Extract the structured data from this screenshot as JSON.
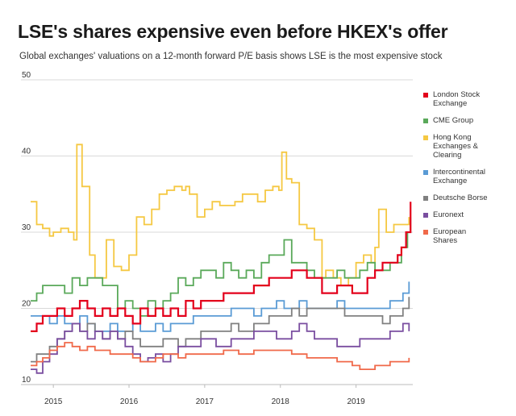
{
  "title": "LSE's shares expensive even before HKEX's offer",
  "subtitle": "Global exchanges' valuations on a 12-month forward P/E basis shows LSE is the most expensive stock",
  "colors": {
    "lse": "#e3001b",
    "cme": "#5aa95a",
    "hkex": "#f5c842",
    "ice": "#5a9bd5",
    "deutsche": "#808080",
    "euronext": "#7a4ea0",
    "european": "#f0694a",
    "grid": "#d9d9d9",
    "axis_text": "#333333"
  },
  "chart_data": {
    "type": "line",
    "title": "LSE's shares expensive even before HKEX's offer",
    "subtitle": "Global exchanges' valuations on a 12-month forward P/E basis shows LSE is the most expensive stock",
    "xlabel": "",
    "ylabel": "",
    "xlim": [
      2014.7,
      2019.75
    ],
    "ylim": [
      10,
      50
    ],
    "yticks": [
      10,
      20,
      30,
      40,
      50
    ],
    "xticks": [
      {
        "value": 2015.0,
        "label": "2015"
      },
      {
        "value": 2016.0,
        "label": "2016"
      },
      {
        "value": 2017.0,
        "label": "2017"
      },
      {
        "value": 2018.0,
        "label": "2018"
      },
      {
        "value": 2019.0,
        "label": "2019"
      }
    ],
    "grid": true,
    "legend_position": "right",
    "step": true,
    "series": [
      {
        "key": "hkex",
        "name": "Hong Kong Exchanges & Clearing",
        "x": [
          2014.7,
          2014.78,
          2014.86,
          2014.95,
          2015.0,
          2015.1,
          2015.2,
          2015.27,
          2015.31,
          2015.38,
          2015.48,
          2015.55,
          2015.6,
          2015.7,
          2015.8,
          2015.9,
          2016.0,
          2016.1,
          2016.2,
          2016.3,
          2016.4,
          2016.5,
          2016.6,
          2016.7,
          2016.75,
          2016.8,
          2016.9,
          2017.0,
          2017.1,
          2017.2,
          2017.3,
          2017.4,
          2017.5,
          2017.6,
          2017.7,
          2017.8,
          2017.9,
          2017.98,
          2018.02,
          2018.08,
          2018.15,
          2018.25,
          2018.35,
          2018.45,
          2018.55,
          2018.6,
          2018.7,
          2018.8,
          2018.9,
          2019.0,
          2019.1,
          2019.2,
          2019.25,
          2019.3,
          2019.4,
          2019.5,
          2019.6,
          2019.7
        ],
        "values": [
          34,
          31,
          30.5,
          29.5,
          30,
          30.5,
          30,
          29,
          41.5,
          36,
          27,
          24,
          24,
          29,
          25.5,
          25,
          27,
          32,
          31,
          33,
          35,
          35.5,
          36,
          35.5,
          36,
          35,
          32,
          33,
          34,
          33.5,
          33.5,
          34,
          35,
          35,
          34,
          35.5,
          36,
          35.5,
          40.5,
          37,
          36.5,
          31,
          30.5,
          29,
          24,
          25,
          24,
          23,
          24,
          26,
          27,
          26,
          28,
          33,
          30,
          31,
          31,
          32
        ]
      },
      {
        "key": "cme",
        "name": "CME Group",
        "x": [
          2014.7,
          2014.78,
          2014.86,
          2014.95,
          2015.05,
          2015.15,
          2015.25,
          2015.35,
          2015.45,
          2015.55,
          2015.65,
          2015.75,
          2015.85,
          2015.95,
          2016.05,
          2016.15,
          2016.25,
          2016.35,
          2016.45,
          2016.55,
          2016.65,
          2016.75,
          2016.85,
          2016.95,
          2017.05,
          2017.15,
          2017.25,
          2017.35,
          2017.45,
          2017.55,
          2017.65,
          2017.75,
          2017.85,
          2017.95,
          2018.05,
          2018.15,
          2018.25,
          2018.35,
          2018.45,
          2018.55,
          2018.65,
          2018.75,
          2018.85,
          2018.95,
          2019.05,
          2019.15,
          2019.25,
          2019.35,
          2019.45,
          2019.55,
          2019.6,
          2019.68,
          2019.72
        ],
        "values": [
          21,
          22,
          23,
          23,
          23,
          22,
          24,
          23,
          24,
          24,
          23,
          23,
          20,
          21,
          20,
          19,
          21,
          20,
          21,
          22,
          24,
          23,
          24,
          25,
          25,
          24,
          26,
          25,
          24,
          25,
          24,
          26,
          27,
          27,
          29,
          26,
          26,
          25,
          24,
          24,
          24,
          25,
          24,
          24,
          25,
          26,
          25,
          25,
          26,
          26,
          28,
          30,
          32
        ]
      },
      {
        "key": "lse",
        "name": "London Stock Exchange",
        "x": [
          2014.7,
          2014.78,
          2014.86,
          2014.95,
          2015.05,
          2015.15,
          2015.25,
          2015.35,
          2015.45,
          2015.55,
          2015.65,
          2015.75,
          2015.85,
          2015.95,
          2016.05,
          2016.15,
          2016.25,
          2016.35,
          2016.45,
          2016.55,
          2016.65,
          2016.75,
          2016.85,
          2016.95,
          2017.05,
          2017.15,
          2017.25,
          2017.35,
          2017.45,
          2017.55,
          2017.65,
          2017.75,
          2017.85,
          2017.95,
          2018.05,
          2018.15,
          2018.25,
          2018.35,
          2018.45,
          2018.55,
          2018.65,
          2018.75,
          2018.85,
          2018.95,
          2019.05,
          2019.15,
          2019.25,
          2019.35,
          2019.45,
          2019.55,
          2019.6,
          2019.66,
          2019.72
        ],
        "values": [
          17,
          18,
          19,
          19,
          20,
          19,
          20,
          21,
          20,
          19,
          20,
          19,
          20,
          19,
          18,
          20,
          19,
          20,
          19,
          20,
          19,
          21,
          20,
          21,
          21,
          21,
          22,
          22,
          22,
          22,
          23,
          23,
          24,
          24,
          24,
          25,
          25,
          24,
          24,
          22,
          22,
          23,
          23,
          22,
          22,
          24,
          25,
          26,
          26,
          27,
          28,
          30,
          34
        ]
      },
      {
        "key": "ice",
        "name": "Intercontinental Exchange",
        "x": [
          2014.7,
          2014.78,
          2014.86,
          2014.95,
          2015.05,
          2015.15,
          2015.25,
          2015.35,
          2015.45,
          2015.55,
          2015.65,
          2015.75,
          2015.85,
          2015.95,
          2016.05,
          2016.15,
          2016.25,
          2016.35,
          2016.45,
          2016.55,
          2016.65,
          2016.75,
          2016.85,
          2016.95,
          2017.05,
          2017.15,
          2017.25,
          2017.35,
          2017.45,
          2017.55,
          2017.65,
          2017.75,
          2017.85,
          2017.95,
          2018.05,
          2018.15,
          2018.25,
          2018.35,
          2018.45,
          2018.55,
          2018.65,
          2018.75,
          2018.85,
          2018.95,
          2019.05,
          2019.15,
          2019.25,
          2019.35,
          2019.45,
          2019.55,
          2019.62,
          2019.7
        ],
        "values": [
          19,
          19,
          19,
          18,
          19,
          18,
          18,
          19,
          18,
          17,
          17,
          18,
          17,
          17,
          18,
          17,
          17,
          18,
          17,
          18,
          18,
          18,
          19,
          19,
          19,
          19,
          19,
          20,
          20,
          20,
          19,
          20,
          20,
          21,
          20,
          20,
          21,
          20,
          20,
          20,
          20,
          21,
          20,
          20,
          20,
          20,
          20,
          20,
          21,
          21,
          22,
          23.5
        ]
      },
      {
        "key": "deutsche",
        "name": "Deutsche Borse",
        "x": [
          2014.7,
          2014.78,
          2014.86,
          2014.95,
          2015.05,
          2015.15,
          2015.25,
          2015.35,
          2015.45,
          2015.55,
          2015.65,
          2015.75,
          2015.85,
          2015.95,
          2016.05,
          2016.15,
          2016.25,
          2016.35,
          2016.45,
          2016.55,
          2016.65,
          2016.75,
          2016.85,
          2016.95,
          2017.05,
          2017.15,
          2017.25,
          2017.35,
          2017.45,
          2017.55,
          2017.65,
          2017.75,
          2017.85,
          2017.95,
          2018.05,
          2018.15,
          2018.25,
          2018.35,
          2018.45,
          2018.55,
          2018.65,
          2018.75,
          2018.85,
          2018.95,
          2019.05,
          2019.15,
          2019.25,
          2019.35,
          2019.45,
          2019.55,
          2019.62,
          2019.7
        ],
        "values": [
          13,
          14,
          14,
          15,
          16,
          17,
          18,
          17,
          18,
          17,
          16,
          17,
          16,
          17,
          16,
          15,
          15,
          15,
          16,
          16,
          15,
          16,
          16,
          17,
          17,
          17,
          17,
          18,
          17,
          17,
          18,
          18,
          19,
          19,
          19,
          20,
          19,
          20,
          20,
          20,
          20,
          20,
          19,
          19,
          19,
          19,
          19,
          18,
          19,
          19,
          20,
          21.5
        ]
      },
      {
        "key": "euronext",
        "name": "Euronext",
        "x": [
          2014.7,
          2014.78,
          2014.86,
          2014.95,
          2015.05,
          2015.15,
          2015.25,
          2015.35,
          2015.45,
          2015.55,
          2015.65,
          2015.75,
          2015.85,
          2015.95,
          2016.05,
          2016.15,
          2016.25,
          2016.35,
          2016.45,
          2016.55,
          2016.65,
          2016.75,
          2016.85,
          2016.95,
          2017.05,
          2017.15,
          2017.25,
          2017.35,
          2017.45,
          2017.55,
          2017.65,
          2017.75,
          2017.85,
          2017.95,
          2018.05,
          2018.15,
          2018.25,
          2018.35,
          2018.45,
          2018.55,
          2018.65,
          2018.75,
          2018.85,
          2018.95,
          2019.05,
          2019.15,
          2019.25,
          2019.35,
          2019.45,
          2019.55,
          2019.62,
          2019.7
        ],
        "values": [
          12,
          11.5,
          13,
          14,
          16,
          17,
          18,
          17,
          16,
          17,
          16,
          17,
          16,
          15,
          14,
          13,
          13.5,
          14,
          13,
          14,
          15,
          15,
          15,
          16,
          16,
          15,
          15,
          16,
          16,
          16,
          17,
          17,
          17,
          16,
          16,
          17,
          18,
          17,
          16,
          16,
          16,
          15,
          15,
          15,
          16,
          16,
          16,
          16,
          17,
          17,
          18,
          17
        ]
      },
      {
        "key": "european",
        "name": "European Shares",
        "x": [
          2014.7,
          2014.78,
          2014.86,
          2014.95,
          2015.05,
          2015.15,
          2015.25,
          2015.35,
          2015.45,
          2015.55,
          2015.65,
          2015.75,
          2015.85,
          2015.95,
          2016.05,
          2016.15,
          2016.25,
          2016.35,
          2016.45,
          2016.55,
          2016.65,
          2016.75,
          2016.85,
          2016.95,
          2017.05,
          2017.15,
          2017.25,
          2017.35,
          2017.45,
          2017.55,
          2017.65,
          2017.75,
          2017.85,
          2017.95,
          2018.05,
          2018.15,
          2018.25,
          2018.35,
          2018.45,
          2018.55,
          2018.65,
          2018.75,
          2018.85,
          2018.95,
          2019.05,
          2019.15,
          2019.25,
          2019.35,
          2019.45,
          2019.55,
          2019.62,
          2019.7
        ],
        "values": [
          12.5,
          13,
          13.5,
          14.5,
          15,
          15.5,
          15,
          14.5,
          15,
          14.5,
          14.5,
          14,
          14,
          14,
          13.5,
          13,
          13,
          13.5,
          14,
          14,
          13.5,
          14,
          14,
          14,
          14,
          14,
          14.5,
          14.5,
          14,
          14,
          14.5,
          14.5,
          14.5,
          14.5,
          14.5,
          14,
          14,
          13.5,
          13.5,
          13.5,
          13.5,
          13,
          13,
          12.5,
          12,
          12,
          12.5,
          12.5,
          13,
          13,
          13,
          13.5
        ]
      }
    ]
  },
  "legend": [
    {
      "key": "lse",
      "label": "London Stock Exchange"
    },
    {
      "key": "cme",
      "label": "CME Group"
    },
    {
      "key": "hkex",
      "label": "Hong Kong Exchanges & Clearing"
    },
    {
      "key": "ice",
      "label": "Intercontinental Exchange"
    },
    {
      "key": "deutsche",
      "label": "Deutsche Borse"
    },
    {
      "key": "euronext",
      "label": "Euronext"
    },
    {
      "key": "european",
      "label": "European Shares"
    }
  ]
}
